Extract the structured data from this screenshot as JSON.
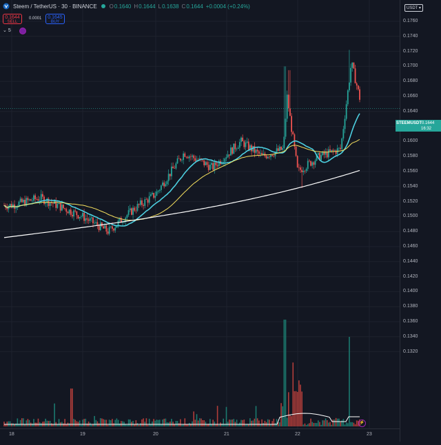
{
  "legend": {
    "title": "Steem / TetherUS · 30 · BINANCE",
    "o_label": "O",
    "o_val": "0.1640",
    "h_label": "H",
    "h_val": "0.1644",
    "l_label": "L",
    "l_val": "0.1638",
    "c_label": "C",
    "c_val": "0.1644",
    "change": "+0.0004 (+0.24%)"
  },
  "trade": {
    "sell_price": "0.1644",
    "sell_label": "SELL",
    "spread": "0.0001",
    "buy_price": "0.1645",
    "buy_label": "BUY"
  },
  "indicators_count": "5",
  "currency": "USDT",
  "last_price": {
    "symbol": "STEEMUSDT",
    "value": "0.1644",
    "countdown": "16:32"
  },
  "colors": {
    "bg": "#131722",
    "up": "#26a69a",
    "down": "#ef5350",
    "ma_short": "#4dd0e1",
    "ma_mid": "#f6e05e",
    "ma_long": "#ffffff"
  },
  "price_ticks": [
    "0.1760",
    "0.1740",
    "0.1720",
    "0.1700",
    "0.1680",
    "0.1660",
    "0.1640",
    "0.1620",
    "0.1600",
    "0.1580",
    "0.1560",
    "0.1540",
    "0.1520",
    "0.1500",
    "0.1480",
    "0.1460",
    "0.1440",
    "0.1420",
    "0.1400",
    "0.1380",
    "0.1360",
    "0.1340",
    "0.1320"
  ],
  "time_ticks": [
    "18",
    "19",
    "20",
    "21",
    "22",
    "23"
  ],
  "chart_data": {
    "type": "candlestick",
    "symbol": "STEEMUSDT",
    "interval": "30",
    "exchange": "BINANCE",
    "ylim": [
      0.131,
      0.177
    ],
    "x_ticks": [
      "18",
      "19",
      "20",
      "21",
      "22",
      "23"
    ],
    "series": [
      {
        "name": "candles",
        "key_points": [
          {
            "x": "18",
            "close": 0.1515
          },
          {
            "x": "18.4",
            "close": 0.1525
          },
          {
            "x": "19",
            "close": 0.15
          },
          {
            "x": "19.35",
            "close": 0.148
          },
          {
            "x": "19.7",
            "close": 0.151
          },
          {
            "x": "20",
            "close": 0.153
          },
          {
            "x": "20.4",
            "close": 0.1585
          },
          {
            "x": "20.8",
            "close": 0.1565
          },
          {
            "x": "21.2",
            "close": 0.16
          },
          {
            "x": "21.5",
            "close": 0.158
          },
          {
            "x": "21.8",
            "close": 0.159
          },
          {
            "x": "21.85",
            "close": 0.166
          },
          {
            "x": "22",
            "close": 0.156
          },
          {
            "x": "22.3",
            "close": 0.158
          },
          {
            "x": "22.6",
            "close": 0.159
          },
          {
            "x": "22.75",
            "close": 0.1705
          },
          {
            "x": "22.9",
            "close": 0.1644
          }
        ]
      }
    ]
  }
}
